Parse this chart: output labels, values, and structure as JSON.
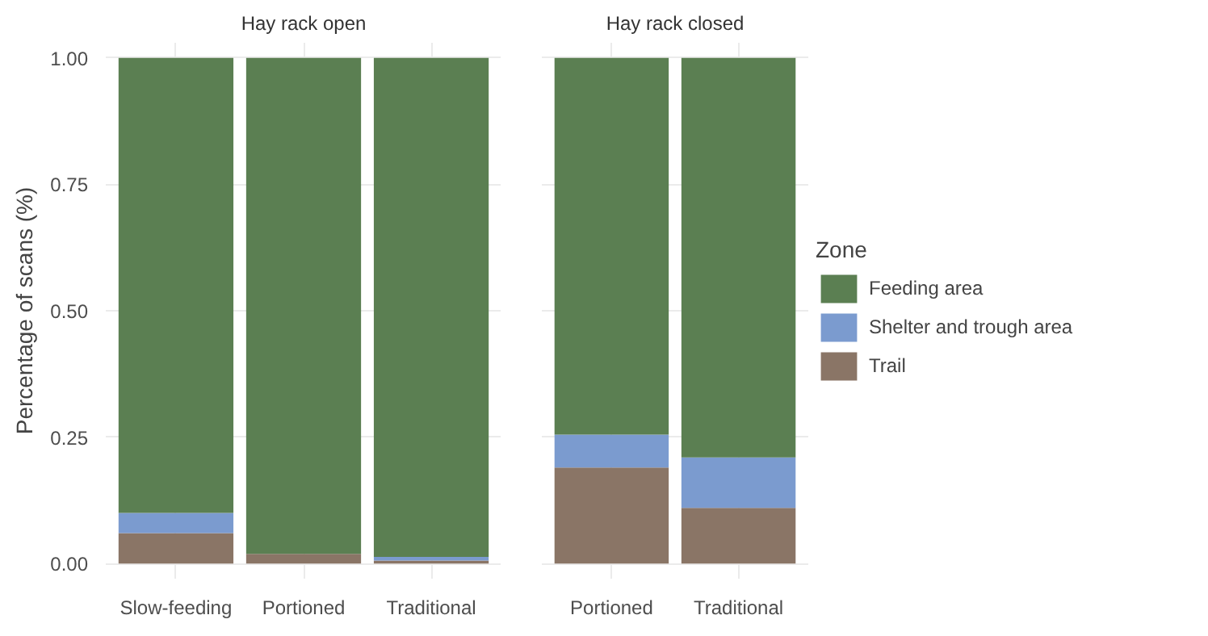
{
  "chart_data": [
    {
      "type": "bar",
      "title": "Hay rack open",
      "ylabel": "Percentage of scans (%)",
      "categories": [
        "Slow-feeding",
        "Portioned",
        "Traditional"
      ],
      "stacked": true,
      "ylim": [
        -0.03,
        1.03
      ],
      "yticks": [
        {
          "value": 0,
          "label": "0.00"
        },
        {
          "value": 0.25,
          "label": "0.25"
        },
        {
          "value": 0.5,
          "label": "0.50"
        },
        {
          "value": 0.75,
          "label": "0.75"
        },
        {
          "value": 1,
          "label": "1.00"
        }
      ],
      "grid": true,
      "legend": false,
      "series": [
        {
          "color": "#8a7566",
          "values": [
            0.06,
            0.019,
            0.006
          ]
        },
        {
          "color": "#7b9bcf",
          "values": [
            0.04,
            0,
            0.007
          ]
        },
        {
          "color": "#5b7f52",
          "values": [
            0.9,
            0.981,
            0.987
          ]
        }
      ]
    },
    {
      "type": "bar",
      "title": "Hay rack closed",
      "legend_title": "Zone",
      "categories": [
        "Portioned",
        "Traditional"
      ],
      "stacked": true,
      "ylim": [
        -0.03,
        1.03
      ],
      "yticks": [
        0,
        0.25,
        0.5,
        0.75,
        1
      ],
      "grid": true,
      "legend": "right",
      "tick_labels": "x",
      "series": [
        {
          "name": "Trail",
          "color": "#8a7566",
          "values": [
            0.19,
            0.11
          ]
        },
        {
          "name": "Shelter and trough area",
          "color": "#7b9bcf",
          "values": [
            0.065,
            0.1
          ]
        },
        {
          "name": "Feeding area",
          "color": "#5b7f52",
          "values": [
            0.745,
            0.79
          ]
        }
      ]
    }
  ]
}
